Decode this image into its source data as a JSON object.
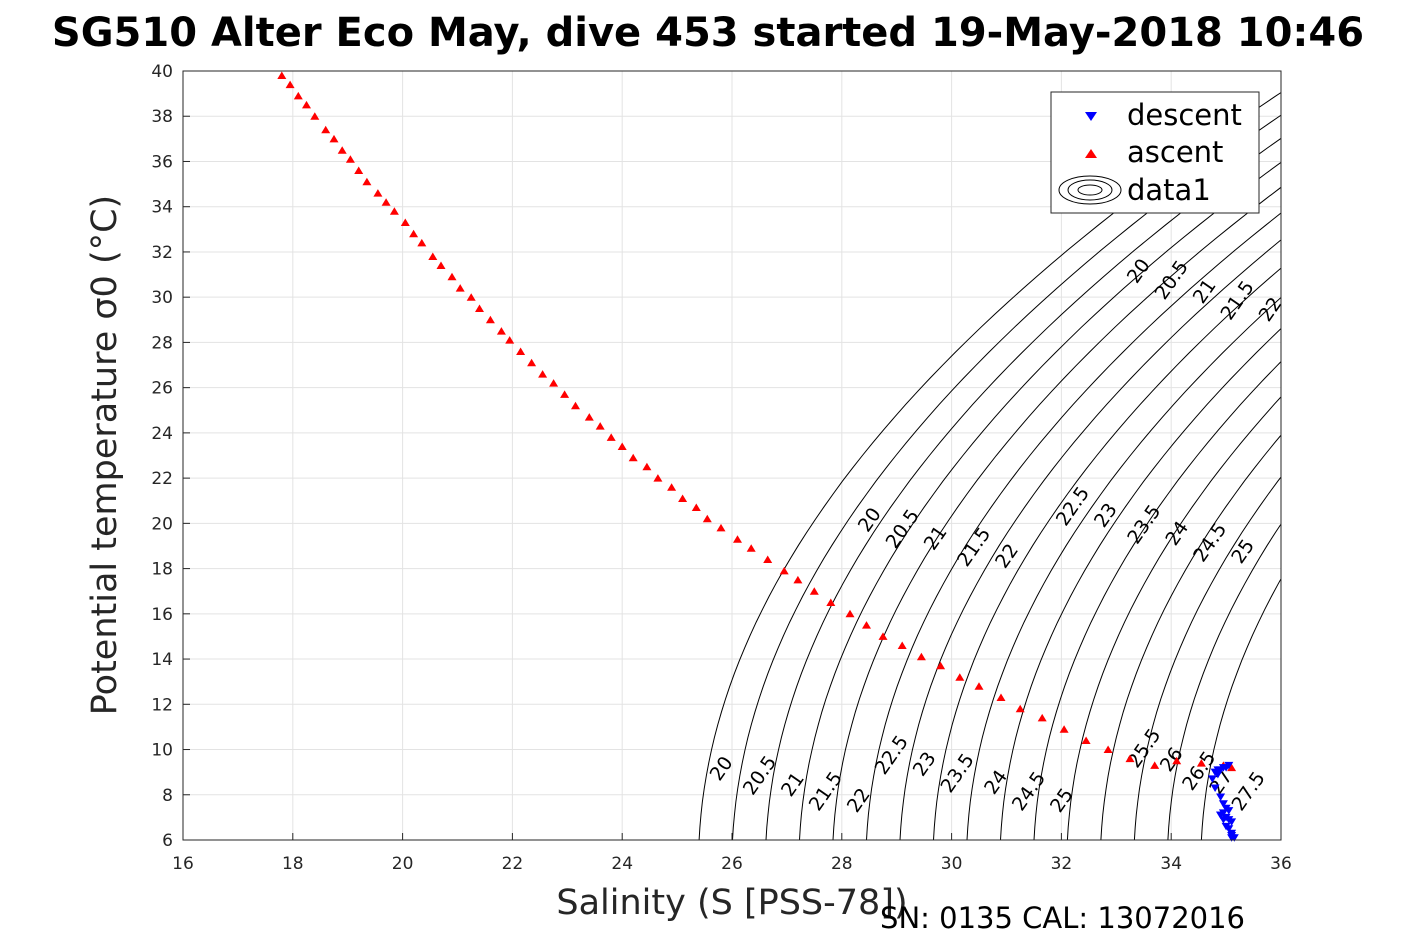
{
  "chart_data": {
    "type": "scatter",
    "title": "SG510 Alter Eco May, dive 453 started 19-May-2018 10:46",
    "xlabel": "Salinity (S [PSS-78])",
    "ylabel": "Potential temperature σ0 (°C)",
    "xlim": [
      16,
      36
    ],
    "ylim": [
      6,
      40
    ],
    "xticks": [
      "16",
      "18",
      "20",
      "22",
      "24",
      "26",
      "28",
      "30",
      "32",
      "34",
      "36"
    ],
    "yticks": [
      "6",
      "8",
      "10",
      "12",
      "14",
      "16",
      "18",
      "20",
      "22",
      "24",
      "26",
      "28",
      "30",
      "32",
      "34",
      "36",
      "38",
      "40"
    ],
    "grid": true,
    "legend_position": "top-right",
    "legend": [
      {
        "name": "descent",
        "color": "#0000ff",
        "marker": "triangle-down"
      },
      {
        "name": "ascent",
        "color": "#ff0000",
        "marker": "triangle-up"
      },
      {
        "name": "data1",
        "color": "#000000",
        "marker": "contour"
      }
    ],
    "series": [
      {
        "name": "ascent",
        "color": "#ff0000",
        "marker": "triangle-up",
        "x": [
          17.8,
          17.95,
          18.1,
          18.25,
          18.4,
          18.6,
          18.75,
          18.9,
          19.05,
          19.2,
          19.35,
          19.55,
          19.7,
          19.85,
          20.05,
          20.2,
          20.35,
          20.55,
          20.7,
          20.9,
          21.05,
          21.25,
          21.4,
          21.6,
          21.8,
          21.95,
          22.15,
          22.35,
          22.55,
          22.75,
          22.95,
          23.15,
          23.4,
          23.6,
          23.8,
          24.0,
          24.2,
          24.45,
          24.65,
          24.9,
          25.1,
          25.35,
          25.55,
          25.8,
          26.1,
          26.35,
          26.65,
          26.95,
          27.2,
          27.5,
          27.8,
          28.15,
          28.45,
          28.75,
          29.1,
          29.45,
          29.8,
          30.15,
          30.5,
          30.9,
          31.25,
          31.65,
          32.05,
          32.45,
          32.85,
          33.25,
          33.7,
          34.1,
          34.55,
          34.95,
          35.1
        ],
        "y": [
          39.8,
          39.4,
          38.9,
          38.5,
          38.0,
          37.4,
          37.0,
          36.5,
          36.1,
          35.6,
          35.1,
          34.6,
          34.2,
          33.8,
          33.3,
          32.8,
          32.4,
          31.8,
          31.4,
          30.9,
          30.4,
          30.0,
          29.5,
          29.0,
          28.5,
          28.1,
          27.6,
          27.1,
          26.6,
          26.2,
          25.7,
          25.2,
          24.7,
          24.3,
          23.8,
          23.4,
          22.9,
          22.5,
          22.0,
          21.6,
          21.1,
          20.7,
          20.2,
          19.8,
          19.3,
          18.9,
          18.4,
          17.9,
          17.5,
          17.0,
          16.5,
          16.0,
          15.5,
          15.0,
          14.6,
          14.1,
          13.7,
          13.2,
          12.8,
          12.3,
          11.8,
          11.4,
          10.9,
          10.4,
          10.0,
          9.6,
          9.3,
          9.5,
          9.4,
          9.3,
          9.2
        ]
      },
      {
        "name": "descent",
        "color": "#0000ff",
        "marker": "triangle-down",
        "x": [
          35.05,
          35.0,
          34.95,
          34.9,
          34.85,
          34.8,
          34.85,
          34.75,
          34.8,
          34.9,
          34.95,
          35.0,
          35.05,
          34.95,
          34.9,
          35.0,
          35.05,
          35.1,
          35.0,
          34.95,
          34.9,
          35.05,
          35.1,
          35.1,
          35.15,
          35.1
        ],
        "y": [
          9.3,
          9.2,
          9.2,
          9.1,
          9.1,
          9.0,
          8.9,
          8.7,
          8.3,
          7.9,
          7.6,
          7.4,
          7.3,
          7.2,
          7.1,
          7.0,
          6.9,
          6.8,
          6.6,
          6.9,
          7.1,
          6.5,
          6.3,
          6.2,
          6.1,
          6.1
        ]
      }
    ],
    "contours": {
      "name": "data1",
      "color": "#000000",
      "unit_note": "sigma-0 density isolines",
      "levels": [
        20,
        20.5,
        21,
        21.5,
        22,
        22.5,
        23,
        23.5,
        24,
        24.5,
        25,
        25.5,
        26,
        26.5,
        27,
        27.5
      ],
      "label_groups": [
        {
          "labels": [
            "20",
            "20.5",
            "21",
            "21.5",
            "22"
          ],
          "s": [
            33.5,
            34.1,
            34.7,
            35.3,
            35.9
          ],
          "t": [
            31.0,
            30.6,
            30.1,
            29.7,
            29.3
          ]
        },
        {
          "labels": [
            "20",
            "20.5",
            "21",
            "21.5",
            "22"
          ],
          "s": [
            28.6,
            29.2,
            29.8,
            30.5,
            31.1
          ],
          "t": [
            20.0,
            19.6,
            19.2,
            18.8,
            18.4
          ]
        },
        {
          "labels": [
            "22.5",
            "23",
            "23.5",
            "24",
            "24.5",
            "25"
          ],
          "s": [
            32.3,
            32.9,
            33.6,
            34.2,
            34.8,
            35.4
          ],
          "t": [
            20.6,
            20.2,
            19.8,
            19.4,
            19.0,
            18.6
          ]
        },
        {
          "labels": [
            "20",
            "20.5",
            "21",
            "21.5",
            "22",
            "22.5",
            "23",
            "23.5",
            "24",
            "24.5",
            "25"
          ],
          "s": [
            25.9,
            26.6,
            27.2,
            27.8,
            28.4,
            29.0,
            29.6,
            30.2,
            30.9,
            31.5,
            32.1
          ],
          "t": [
            9.0,
            8.7,
            8.3,
            8.0,
            7.6,
            9.6,
            9.2,
            8.8,
            8.4,
            8.0,
            7.6
          ]
        },
        {
          "labels": [
            "25.5",
            "26",
            "26.5",
            "27",
            "27.5"
          ],
          "s": [
            33.6,
            34.1,
            34.6,
            35.0,
            35.5
          ],
          "t": [
            9.9,
            9.4,
            8.9,
            8.4,
            8.0
          ]
        }
      ]
    }
  },
  "footer": {
    "sn_cal": "SN: 0135  CAL: 13072016"
  }
}
